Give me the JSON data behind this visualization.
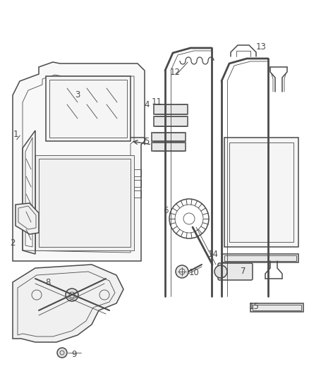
{
  "bg_color": "#ffffff",
  "line_color": "#4a4a4a",
  "lw_main": 1.1,
  "lw_thin": 0.6,
  "label_fs": 8.5,
  "figw": 4.38,
  "figh": 5.33,
  "dpi": 100
}
